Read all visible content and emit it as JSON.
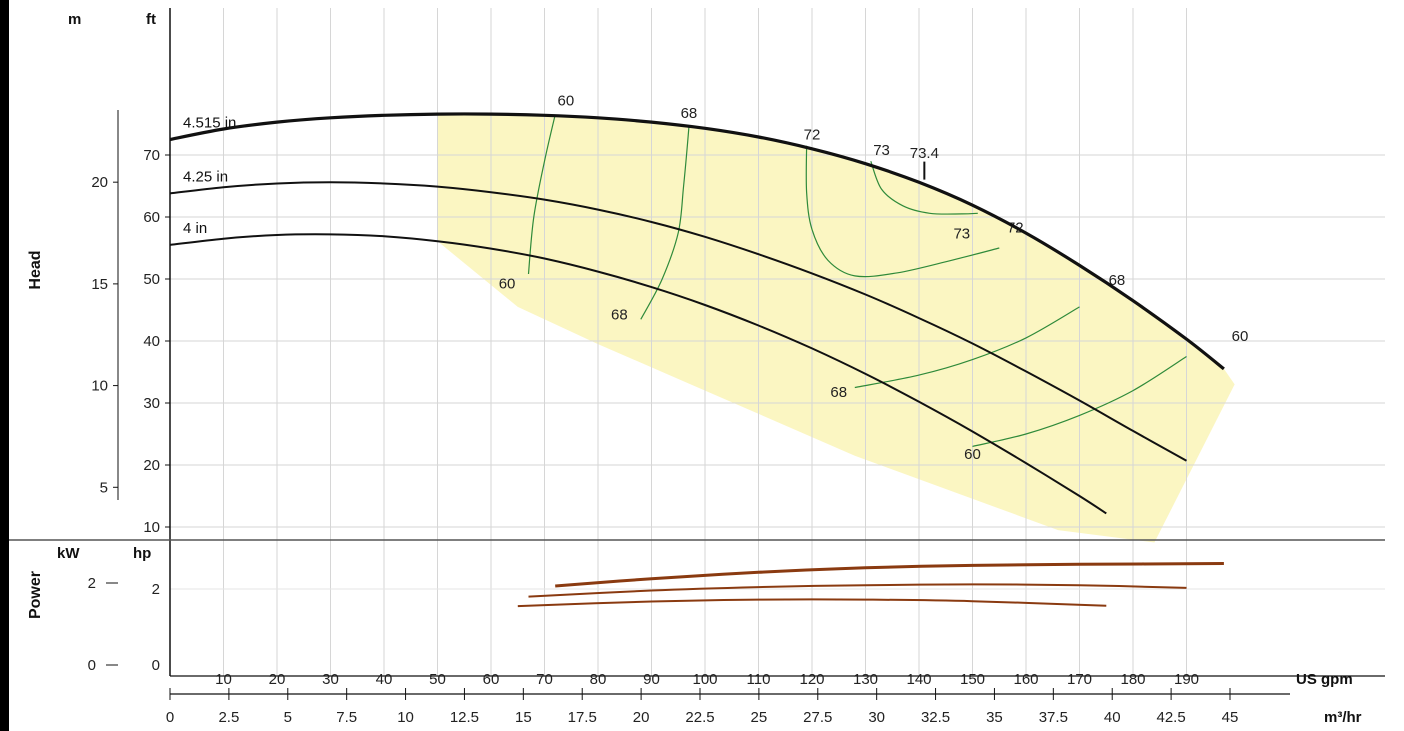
{
  "chart_data": [
    {
      "type": "line",
      "panel": "head",
      "ylabel": "Head",
      "y_units": {
        "primary": "m",
        "secondary": "ft"
      },
      "ylim_m": [
        3,
        25
      ],
      "m_ticks": [
        5,
        10,
        15,
        20
      ],
      "ft_ticks": [
        10,
        20,
        30,
        40,
        50,
        60,
        70
      ],
      "xlim_usgpm": [
        0,
        205
      ],
      "grid": true,
      "series": [
        {
          "name": "4.515 in",
          "x": [
            0,
            10,
            20,
            30,
            40,
            50,
            60,
            70,
            80,
            90,
            100,
            110,
            120,
            130,
            140,
            150,
            160,
            170,
            180,
            190,
            197
          ],
          "y": [
            72.5,
            74.2,
            75.3,
            76.0,
            76.4,
            76.6,
            76.6,
            76.4,
            76.0,
            75.3,
            74.3,
            72.9,
            71.0,
            68.6,
            65.6,
            61.9,
            57.4,
            52.2,
            46.5,
            40.3,
            35.5
          ]
        },
        {
          "name": "4.25 in",
          "x": [
            0,
            10,
            20,
            30,
            40,
            50,
            60,
            70,
            80,
            90,
            100,
            110,
            120,
            130,
            140,
            150,
            160,
            170,
            180,
            190
          ],
          "y": [
            63.8,
            64.8,
            65.4,
            65.6,
            65.4,
            64.9,
            64.0,
            62.8,
            61.2,
            59.2,
            56.8,
            54.0,
            50.9,
            47.5,
            43.7,
            39.6,
            35.1,
            30.4,
            25.5,
            20.7
          ]
        },
        {
          "name": "4 in",
          "x": [
            0,
            10,
            20,
            30,
            40,
            50,
            60,
            70,
            80,
            90,
            100,
            110,
            120,
            130,
            140,
            150,
            160,
            170,
            175
          ],
          "y": [
            55.5,
            56.5,
            57.1,
            57.2,
            56.9,
            56.1,
            54.9,
            53.3,
            51.2,
            48.7,
            45.8,
            42.5,
            38.8,
            34.7,
            30.2,
            25.4,
            20.3,
            15.0,
            12.2
          ]
        }
      ],
      "efficiency_contours": [
        {
          "label": "60",
          "x": [
            67,
            68,
            70,
            72
          ],
          "y": [
            50.8,
            60.0,
            69.0,
            76.5
          ]
        },
        {
          "label": "68",
          "x": [
            88,
            92,
            95,
            96,
            97
          ],
          "y": [
            43.5,
            50.0,
            57.5,
            65.0,
            74.5
          ]
        },
        {
          "label": "72",
          "x": [
            119,
            119,
            120,
            123,
            128,
            136,
            146,
            155
          ],
          "y": [
            71.5,
            64.0,
            58.0,
            53.0,
            50.5,
            51.0,
            53.0,
            55.0
          ]
        },
        {
          "label": "73",
          "x": [
            131,
            133,
            137,
            142,
            148,
            151
          ],
          "y": [
            69.0,
            64.5,
            61.8,
            60.6,
            60.5,
            60.6
          ]
        },
        {
          "label": "68",
          "x": [
            128,
            140,
            150,
            160,
            170
          ],
          "y": [
            32.5,
            34.5,
            37.0,
            40.5,
            45.5
          ]
        },
        {
          "label": "60",
          "x": [
            150,
            160,
            170,
            180,
            190
          ],
          "y": [
            23.0,
            25.0,
            28.0,
            32.0,
            37.5
          ]
        }
      ],
      "efficiency_point_labels": [
        {
          "text": "60",
          "x": 74,
          "y": 78.0
        },
        {
          "text": "68",
          "x": 97,
          "y": 76.0
        },
        {
          "text": "72",
          "x": 120,
          "y": 72.5
        },
        {
          "text": "73",
          "x": 133,
          "y": 70.0
        },
        {
          "text": "73.4",
          "x": 141,
          "y": 69.5
        },
        {
          "text": "73",
          "x": 148,
          "y": 56.5
        },
        {
          "text": "72",
          "x": 158,
          "y": 57.5
        },
        {
          "text": "68",
          "x": 177,
          "y": 49.0
        },
        {
          "text": "60",
          "x": 200,
          "y": 40.0
        },
        {
          "text": "60",
          "x": 63,
          "y": 48.5
        },
        {
          "text": "68",
          "x": 84,
          "y": 43.5
        },
        {
          "text": "68",
          "x": 125,
          "y": 31.0
        },
        {
          "text": "60",
          "x": 150,
          "y": 21.0
        }
      ],
      "bep_marker": {
        "x": 141,
        "y": 67.0
      },
      "operating_region_color": "#fbf6c2"
    },
    {
      "type": "line",
      "panel": "power",
      "ylabel": "Power",
      "y_units": {
        "primary": "kW",
        "secondary": "hp"
      },
      "kw_ticks": [
        0,
        2
      ],
      "hp_ticks": [
        0,
        2
      ],
      "ylim_hp": [
        0,
        3.4
      ],
      "series": [
        {
          "name": "4.515 in",
          "x": [
            72,
            90,
            110,
            130,
            150,
            170,
            197
          ],
          "y": [
            2.08,
            2.27,
            2.44,
            2.56,
            2.62,
            2.65,
            2.67
          ]
        },
        {
          "name": "4.25 in",
          "x": [
            67,
            90,
            110,
            130,
            150,
            170,
            190
          ],
          "y": [
            1.8,
            1.96,
            2.05,
            2.1,
            2.12,
            2.1,
            2.03
          ]
        },
        {
          "name": "4 in",
          "x": [
            65,
            90,
            110,
            130,
            150,
            175
          ],
          "y": [
            1.55,
            1.67,
            1.72,
            1.72,
            1.68,
            1.56
          ]
        }
      ]
    }
  ],
  "x_axis": {
    "usgpm": {
      "unit": "US gpm",
      "ticks": [
        10,
        20,
        30,
        40,
        50,
        60,
        70,
        80,
        90,
        100,
        110,
        120,
        130,
        140,
        150,
        160,
        170,
        180,
        190
      ],
      "lim": [
        0,
        205
      ]
    },
    "m3hr": {
      "unit": "m³/hr",
      "ticks": [
        0,
        2.5,
        5,
        7.5,
        10,
        12.5,
        15,
        17.5,
        20,
        22.5,
        25,
        27.5,
        30,
        32.5,
        35,
        37.5,
        40,
        42.5,
        45
      ]
    }
  },
  "colors": {
    "head_curve": "#111111",
    "efficiency_line": "#2f8a3a",
    "power_curve": "#8a3a10",
    "grid": "#d6d6d6",
    "region": "#fbf6c2"
  }
}
